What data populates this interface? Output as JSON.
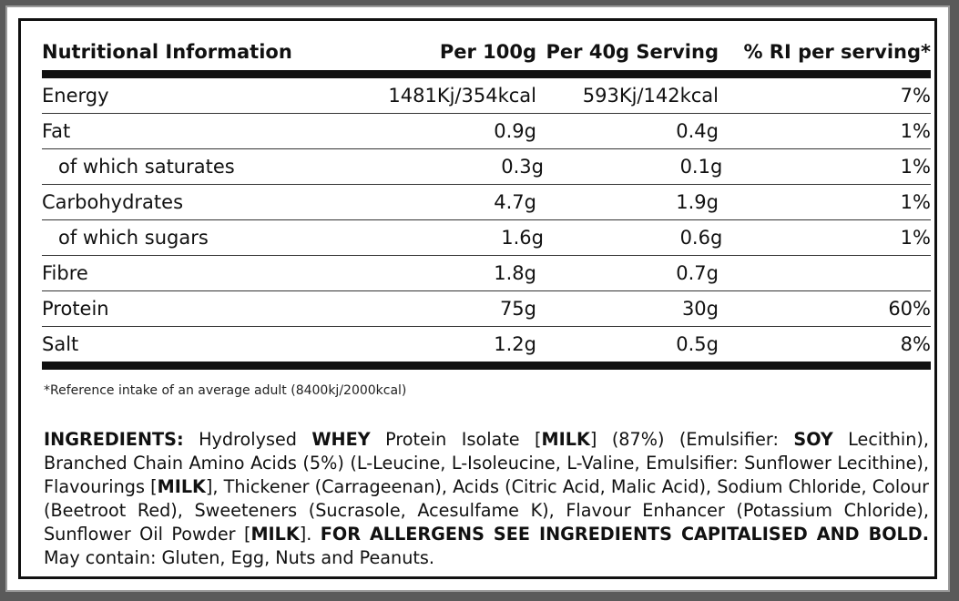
{
  "table": {
    "headers": [
      "Nutritional Information",
      "Per 100g",
      "Per 40g Serving",
      "% RI per serving*"
    ],
    "rows": [
      {
        "label": "Energy",
        "per100": "1481Kj/354kcal",
        "perServing": "593Kj/142kcal",
        "ri": "7%"
      },
      {
        "label": "Fat",
        "per100": "0.9g",
        "perServing": "0.4g",
        "ri": "1%"
      },
      {
        "label": "of which saturates",
        "per100": "0.3g",
        "perServing": "0.1g",
        "ri": "1%"
      },
      {
        "label": "Carbohydrates",
        "per100": "4.7g",
        "perServing": "1.9g",
        "ri": "1%"
      },
      {
        "label": "of which sugars",
        "per100": "1.6g",
        "perServing": "0.6g",
        "ri": "1%"
      },
      {
        "label": "Fibre",
        "per100": "1.8g",
        "perServing": "0.7g",
        "ri": ""
      },
      {
        "label": "Protein",
        "per100": "75g",
        "perServing": "30g",
        "ri": "60%"
      },
      {
        "label": "Salt",
        "per100": "1.2g",
        "perServing": "0.5g",
        "ri": "8%"
      }
    ]
  },
  "footnote": "*Reference intake of an average adult (8400kj/2000kcal)",
  "ingredients": {
    "heading": "INGREDIENTS:",
    "t1": " Hydrolysed ",
    "b1": "WHEY",
    "t2": " Protein Isolate [",
    "b2": "MILK",
    "t3": "] (87%) (Emulsifier: ",
    "b3": "SOY",
    "t4": " Lecithin), Branched Chain Amino Acids (5%) (L-Leucine, L-Isoleucine, L-Valine, Emulsifier: Sunflower Lecithine), Flavourings [",
    "b4": "MILK",
    "t5": "], Thickener (Carrageenan), Acids (Citric Acid, Malic Acid), Sodium Chloride, Colour (Beetroot Red), Sweeteners (Sucrasole, Acesulfame K), Flavour Enhancer (Potassium Chloride), Sunflower Oil Powder [",
    "b5": "MILK",
    "t6": "]. ",
    "b6": "FOR ALLERGENS SEE INGREDIENTS CAPITALISED AND BOLD.",
    "t7": " May contain: Gluten, Egg, Nuts and Peanuts."
  }
}
